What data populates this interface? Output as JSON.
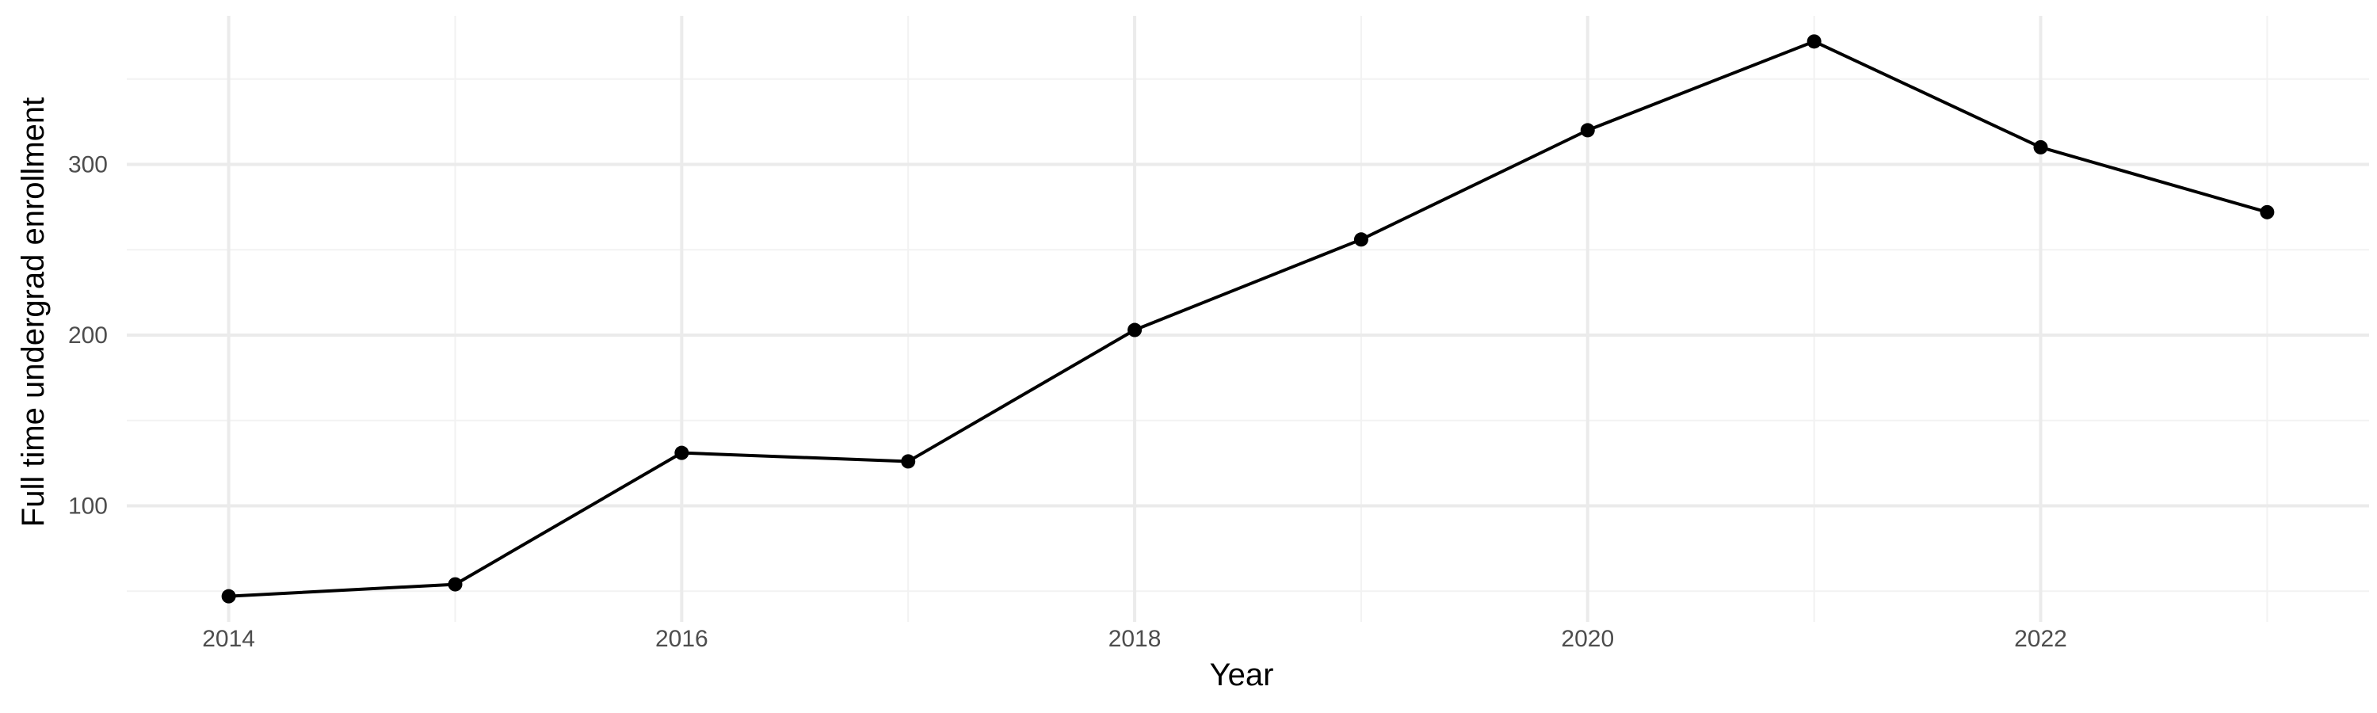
{
  "chart_data": {
    "type": "line",
    "title": "",
    "xlabel": "Year",
    "ylabel": "Full time undergrad enrollment",
    "x": [
      2014,
      2015,
      2016,
      2017,
      2018,
      2019,
      2020,
      2021,
      2022,
      2023
    ],
    "series": [
      {
        "values": [
          47,
          54,
          131,
          126,
          203,
          256,
          320,
          372,
          310,
          272
        ]
      }
    ],
    "xlim": [
      2013.55,
      2023.45
    ],
    "ylim": [
      32,
      387
    ],
    "x_major_ticks": [
      2014,
      2016,
      2018,
      2020,
      2022
    ],
    "x_tick_labels": [
      "2014",
      "2016",
      "2018",
      "2020",
      "2022"
    ],
    "x_minor_ticks": [
      2015,
      2017,
      2019,
      2021,
      2023
    ],
    "y_major_ticks": [
      100,
      200,
      300
    ],
    "y_tick_labels": [
      "100",
      "200",
      "300"
    ],
    "y_minor_ticks": [
      50,
      150,
      250,
      350
    ],
    "grid": true,
    "legend": "none",
    "colors": {
      "line": "#000000",
      "points": "#000000",
      "grid_major": "#ebebeb",
      "grid_minor": "#f2f2f2",
      "tick_text": "#4d4d4d",
      "axis_title": "#000000",
      "background": "#ffffff"
    }
  }
}
